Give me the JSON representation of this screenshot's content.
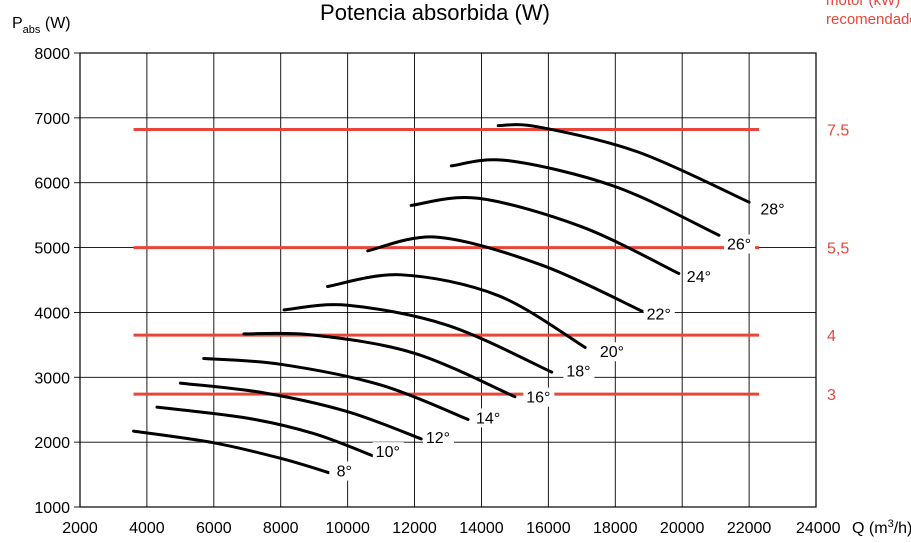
{
  "chart_data": {
    "type": "line",
    "title": "Potencia absorbida (W)",
    "ylabel": {
      "main": "P",
      "sub": "abs",
      "unit": " (W)"
    },
    "xlabel": {
      "main": "Q",
      "unit_pre": " (m",
      "sup": "3",
      "unit_post": "/h)"
    },
    "xlim": [
      2000,
      24000
    ],
    "ylim": [
      1000,
      8000
    ],
    "x_ticks": [
      "2000",
      "4000",
      "6000",
      "8000",
      "10000",
      "12000",
      "14000",
      "16000",
      "18000",
      "20000",
      "22000",
      "24000"
    ],
    "y_ticks": [
      "1000",
      "2000",
      "3000",
      "4000",
      "5000",
      "6000",
      "7000",
      "8000"
    ],
    "grid": true,
    "side_note": [
      "motor (kW)",
      "recomendado"
    ],
    "motor_lines": [
      {
        "label": "7.5",
        "y": 6820,
        "x": [
          3600,
          22300
        ]
      },
      {
        "label": "5,5",
        "y": 5000,
        "x": [
          3600,
          22300
        ]
      },
      {
        "label": "4",
        "y": 3650,
        "x": [
          3600,
          22300
        ]
      },
      {
        "label": "3",
        "y": 2740,
        "x": [
          3600,
          22300
        ]
      }
    ],
    "series": [
      {
        "name": "8°",
        "x": [
          3600,
          6000,
          8000,
          9500
        ],
        "y": [
          2170,
          1990,
          1750,
          1520
        ]
      },
      {
        "name": "10°",
        "x": [
          4300,
          7000,
          9000,
          10800
        ],
        "y": [
          2540,
          2370,
          2130,
          1780
        ]
      },
      {
        "name": "12°",
        "x": [
          5000,
          7500,
          10000,
          12200
        ],
        "y": [
          2910,
          2760,
          2470,
          2050
        ]
      },
      {
        "name": "14°",
        "x": [
          5700,
          8000,
          11000,
          13600
        ],
        "y": [
          3290,
          3200,
          2880,
          2350
        ]
      },
      {
        "name": "16°",
        "x": [
          6900,
          9000,
          12000,
          15000
        ],
        "y": [
          3670,
          3650,
          3370,
          2700
        ]
      },
      {
        "name": "18°",
        "x": [
          8100,
          10000,
          13000,
          16100
        ],
        "y": [
          4040,
          4110,
          3800,
          3080
        ]
      },
      {
        "name": "20°",
        "x": [
          9400,
          11600,
          14500,
          17100
        ],
        "y": [
          4400,
          4580,
          4260,
          3460
        ]
      },
      {
        "name": "22°",
        "x": [
          10600,
          12700,
          15800,
          18800
        ],
        "y": [
          4950,
          5160,
          4730,
          4020
        ]
      },
      {
        "name": "24°",
        "x": [
          11900,
          13900,
          17000,
          19900
        ],
        "y": [
          5650,
          5760,
          5320,
          4600
        ]
      },
      {
        "name": "26°",
        "x": [
          13100,
          14800,
          18000,
          21100
        ],
        "y": [
          6260,
          6340,
          5940,
          5190
        ]
      },
      {
        "name": "28°",
        "x": [
          14500,
          15700,
          18700,
          22000
        ],
        "y": [
          6880,
          6860,
          6470,
          5700
        ]
      }
    ],
    "label_anchor": [
      [
        9900,
        1500
      ],
      [
        11200,
        1800
      ],
      [
        12700,
        2020
      ],
      [
        14200,
        2320
      ],
      [
        15700,
        2640
      ],
      [
        16900,
        3040
      ],
      [
        17900,
        3340
      ],
      [
        19300,
        3920
      ],
      [
        20500,
        4500
      ],
      [
        21700,
        5000
      ],
      [
        22700,
        5540
      ]
    ],
    "colors": {
      "curve": "#000000",
      "motor": "#e8463a",
      "grid": "#000000"
    }
  }
}
